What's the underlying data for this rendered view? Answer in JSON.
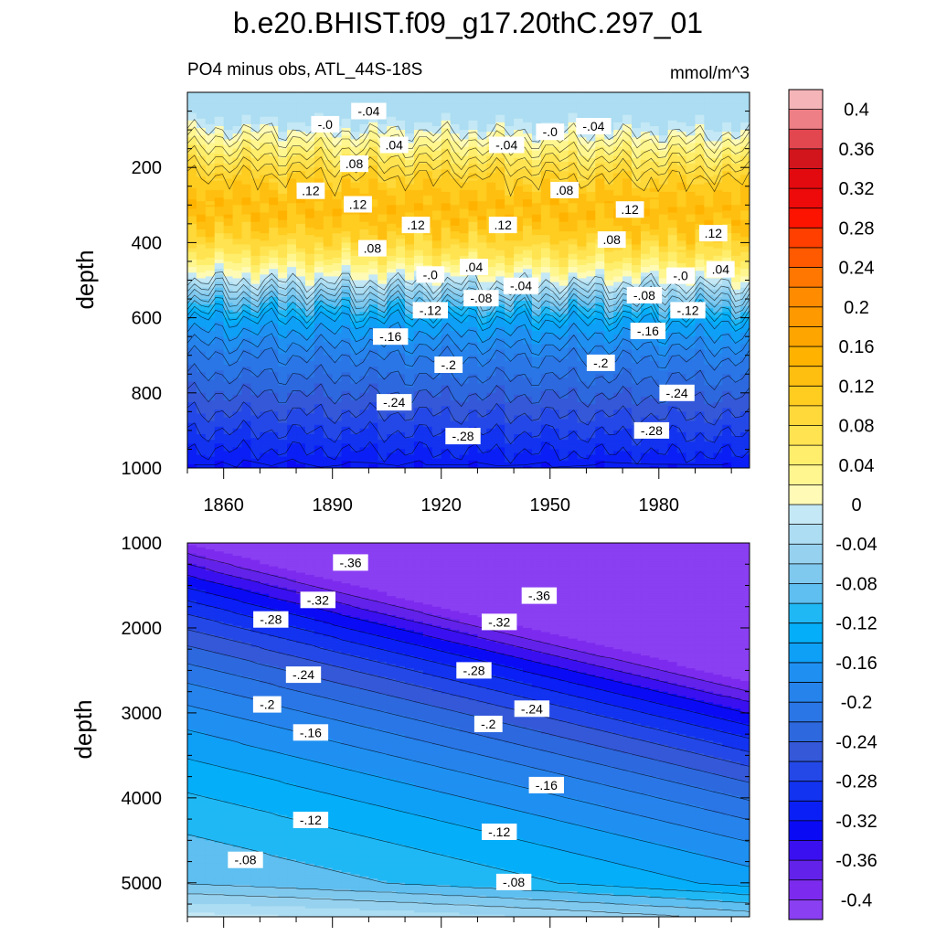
{
  "chart_data": [
    {
      "type": "heatmap",
      "panel": "upper",
      "title": "b.e20.BHIST.f09_g17.20thC.297_01",
      "subtitle_left": "PO4 minus obs, ATL_44S-18S",
      "subtitle_right": "mmol/m^3",
      "xlabel": "",
      "ylabel": "depth",
      "xlim": [
        1850,
        2005
      ],
      "ylim": [
        1000,
        0
      ],
      "xticks": [
        1860,
        1890,
        1920,
        1950,
        1980
      ],
      "xtick_labels": [
        "1860",
        "1890",
        "1920",
        "1950",
        "1980"
      ],
      "yticks": [
        200,
        400,
        600,
        800,
        1000
      ],
      "ytick_labels": [
        "200",
        "400",
        "600",
        "800",
        "1000"
      ],
      "depth_profile": [
        {
          "depth": 0,
          "value": -0.04
        },
        {
          "depth": 50,
          "value": -0.04
        },
        {
          "depth": 90,
          "value": -0.01
        },
        {
          "depth": 120,
          "value": 0.02
        },
        {
          "depth": 170,
          "value": 0.06
        },
        {
          "depth": 220,
          "value": 0.1
        },
        {
          "depth": 280,
          "value": 0.13
        },
        {
          "depth": 330,
          "value": 0.13
        },
        {
          "depth": 380,
          "value": 0.1
        },
        {
          "depth": 430,
          "value": 0.06
        },
        {
          "depth": 470,
          "value": 0.02
        },
        {
          "depth": 500,
          "value": -0.02
        },
        {
          "depth": 550,
          "value": -0.08
        },
        {
          "depth": 600,
          "value": -0.14
        },
        {
          "depth": 700,
          "value": -0.2
        },
        {
          "depth": 800,
          "value": -0.24
        },
        {
          "depth": 900,
          "value": -0.28
        },
        {
          "depth": 1000,
          "value": -0.32
        }
      ],
      "contour_labels": [
        {
          "text": "-.04",
          "x": 1900,
          "depth": 50
        },
        {
          "text": "-.0",
          "x": 1888,
          "depth": 85
        },
        {
          "text": "-.0",
          "x": 1950,
          "depth": 105
        },
        {
          "text": "-.04",
          "x": 1962,
          "depth": 90
        },
        {
          "text": "-.04",
          "x": 1938,
          "depth": 140
        },
        {
          "text": ".04",
          "x": 1907,
          "depth": 140
        },
        {
          "text": ".08",
          "x": 1896,
          "depth": 190
        },
        {
          "text": ".08",
          "x": 1954,
          "depth": 260
        },
        {
          "text": ".12",
          "x": 1884,
          "depth": 262
        },
        {
          "text": ".12",
          "x": 1897,
          "depth": 298
        },
        {
          "text": ".12",
          "x": 1913,
          "depth": 353
        },
        {
          "text": ".12",
          "x": 1937,
          "depth": 353
        },
        {
          "text": ".12",
          "x": 1972,
          "depth": 312
        },
        {
          "text": ".12",
          "x": 1995,
          "depth": 375
        },
        {
          "text": ".08",
          "x": 1901,
          "depth": 415
        },
        {
          "text": ".08",
          "x": 1967,
          "depth": 392
        },
        {
          "text": ".04",
          "x": 1929,
          "depth": 465
        },
        {
          "text": ".04",
          "x": 1997,
          "depth": 471
        },
        {
          "text": "-.0",
          "x": 1917,
          "depth": 485
        },
        {
          "text": "-.0",
          "x": 1986,
          "depth": 488
        },
        {
          "text": "-.04",
          "x": 1942,
          "depth": 515
        },
        {
          "text": "-.08",
          "x": 1931,
          "depth": 548
        },
        {
          "text": "-.08",
          "x": 1976,
          "depth": 540
        },
        {
          "text": "-.12",
          "x": 1917,
          "depth": 580
        },
        {
          "text": "-.12",
          "x": 1988,
          "depth": 580
        },
        {
          "text": "-.16",
          "x": 1906,
          "depth": 650
        },
        {
          "text": "-.16",
          "x": 1977,
          "depth": 635
        },
        {
          "text": "-.2",
          "x": 1922,
          "depth": 725
        },
        {
          "text": "-.2",
          "x": 1964,
          "depth": 720
        },
        {
          "text": "-.24",
          "x": 1907,
          "depth": 825
        },
        {
          "text": "-.24",
          "x": 1985,
          "depth": 800
        },
        {
          "text": "-.28",
          "x": 1926,
          "depth": 915
        },
        {
          "text": "-.28",
          "x": 1978,
          "depth": 900
        }
      ]
    },
    {
      "type": "heatmap",
      "panel": "lower",
      "xlabel": "",
      "ylabel": "depth",
      "xlim": [
        1850,
        2005
      ],
      "ylim": [
        5400,
        1000
      ],
      "xticks": [
        1860,
        1890,
        1920,
        1950,
        1980
      ],
      "yticks": [
        1000,
        2000,
        3000,
        4000,
        5000
      ],
      "ytick_labels": [
        "1000",
        "2000",
        "3000",
        "4000",
        "5000"
      ],
      "field_description": "values least negative near 5000 m, most negative (-0.40) near 1000 m around 1990; contours tilt deeper with later years",
      "contour_labels": [
        {
          "text": "-.36",
          "x": 1895,
          "depth": 1230
        },
        {
          "text": "-.36",
          "x": 1947,
          "depth": 1620
        },
        {
          "text": "-.32",
          "x": 1886,
          "depth": 1670
        },
        {
          "text": "-.32",
          "x": 1936,
          "depth": 1930
        },
        {
          "text": "-.28",
          "x": 1873,
          "depth": 1900
        },
        {
          "text": "-.28",
          "x": 1929,
          "depth": 2500
        },
        {
          "text": "-.24",
          "x": 1882,
          "depth": 2550
        },
        {
          "text": "-.24",
          "x": 1945,
          "depth": 2950
        },
        {
          "text": "-.2",
          "x": 1872,
          "depth": 2900
        },
        {
          "text": "-.2",
          "x": 1933,
          "depth": 3130
        },
        {
          "text": "-.16",
          "x": 1884,
          "depth": 3230
        },
        {
          "text": "-.16",
          "x": 1949,
          "depth": 3850
        },
        {
          "text": "-.12",
          "x": 1884,
          "depth": 4260
        },
        {
          "text": "-.12",
          "x": 1936,
          "depth": 4400
        },
        {
          "text": "-.08",
          "x": 1866,
          "depth": 4730
        },
        {
          "text": "-.08",
          "x": 1940,
          "depth": 4990
        }
      ]
    }
  ],
  "colorbar": {
    "min": -0.42,
    "max": 0.42,
    "step": 0.02,
    "labels": [
      "0.4",
      "0.36",
      "0.32",
      "0.28",
      "0.24",
      "0.2",
      "0.16",
      "0.12",
      "0.08",
      "0.04",
      "0",
      "-0.04",
      "-0.08",
      "-0.12",
      "-0.16",
      "-0.2",
      "-0.24",
      "-0.28",
      "-0.32",
      "-0.36",
      "-0.4"
    ],
    "label_values": [
      0.4,
      0.36,
      0.32,
      0.28,
      0.24,
      0.2,
      0.16,
      0.12,
      0.08,
      0.04,
      0,
      -0.04,
      -0.08,
      -0.12,
      -0.16,
      -0.2,
      -0.24,
      -0.28,
      -0.32,
      -0.36,
      -0.4
    ],
    "colors_top_to_bottom": [
      "#f5b5b8",
      "#ef7f86",
      "#e2464f",
      "#d2141c",
      "#e20a0e",
      "#ee0a0a",
      "#fc1300",
      "#fe3f00",
      "#ff5a00",
      "#ff7700",
      "#ff8c00",
      "#ff9900",
      "#ffa500",
      "#ffb300",
      "#ffbf10",
      "#ffcc20",
      "#ffd83a",
      "#ffe350",
      "#ffee6c",
      "#fff690",
      "#fffbb6",
      "#c4e8f5",
      "#acddf2",
      "#96d2ef",
      "#7fc8ee",
      "#5ebff0",
      "#1fb8f5",
      "#05aef8",
      "#0ea0f6",
      "#1f90f2",
      "#2683ec",
      "#2a76e6",
      "#2d68de",
      "#3458d8",
      "#2448e8",
      "#1233f0",
      "#0a1ff5",
      "#0a0af5",
      "#3a10f0",
      "#6222ea",
      "#7c2bee",
      "#8a3ff2"
    ]
  }
}
